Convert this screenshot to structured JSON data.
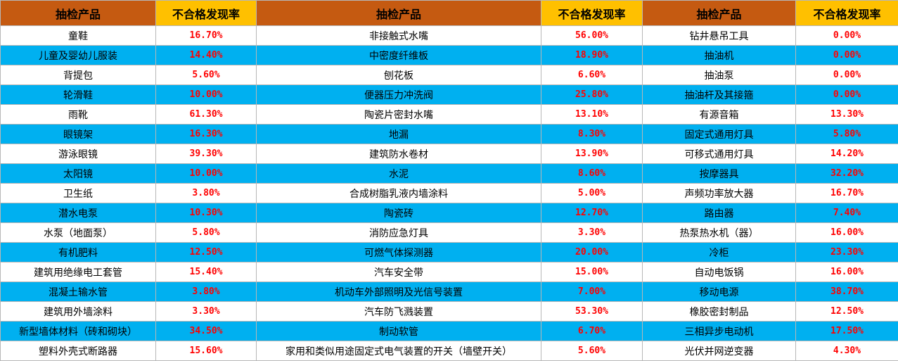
{
  "header": [
    "抽检产品",
    "不合格发现率",
    "抽检产品",
    "不合格发现率",
    "抽检产品",
    "不合格发现率"
  ],
  "rows": [
    [
      "童鞋",
      "16.70%",
      "非接触式水嘴",
      "56.00%",
      "钻井悬吊工具",
      "0.00%"
    ],
    [
      "儿童及婴幼儿服装",
      "14.40%",
      "中密度纤维板",
      "18.90%",
      "抽油机",
      "0.00%"
    ],
    [
      "背提包",
      "5.60%",
      "刨花板",
      "6.60%",
      "抽油泵",
      "0.00%"
    ],
    [
      "轮滑鞋",
      "10.00%",
      "便器压力冲洗阀",
      "25.80%",
      "抽油杆及其接箍",
      "0.00%"
    ],
    [
      "雨靴",
      "61.30%",
      "陶瓷片密封水嘴",
      "13.10%",
      "有源音箱",
      "13.30%"
    ],
    [
      "眼镜架",
      "16.30%",
      "地漏",
      "8.30%",
      "固定式通用灯具",
      "5.80%"
    ],
    [
      "游泳眼镜",
      "39.30%",
      "建筑防水卷材",
      "13.90%",
      "可移式通用灯具",
      "14.20%"
    ],
    [
      "太阳镜",
      "10.00%",
      "水泥",
      "8.60%",
      "按摩器具",
      "32.20%"
    ],
    [
      "卫生纸",
      "3.80%",
      "合成树脂乳液内墙涂料",
      "5.00%",
      "声频功率放大器",
      "16.70%"
    ],
    [
      "潜水电泵",
      "10.30%",
      "陶瓷砖",
      "12.70%",
      "路由器",
      "7.40%"
    ],
    [
      "水泵（地面泵）",
      "5.80%",
      "消防应急灯具",
      "3.30%",
      "热泵热水机（器）",
      "16.00%"
    ],
    [
      "有机肥料",
      "12.50%",
      "可燃气体探测器",
      "20.00%",
      "冷柜",
      "23.30%"
    ],
    [
      "建筑用绝缘电工套管",
      "15.40%",
      "汽车安全带",
      "15.00%",
      "自动电饭锅",
      "16.00%"
    ],
    [
      "混凝土输水管",
      "3.80%",
      "机动车外部照明及光信号装置",
      "7.00%",
      "移动电源",
      "38.70%"
    ],
    [
      "建筑用外墙涂料",
      "3.30%",
      "汽车防飞溅装置",
      "53.30%",
      "橡胶密封制品",
      "12.50%"
    ],
    [
      "新型墙体材料（砖和砌块）",
      "34.50%",
      "制动软管",
      "6.70%",
      "三相异步电动机",
      "17.50%"
    ],
    [
      "塑料外壳式断路器",
      "15.60%",
      "家用和类似用途固定式电气装置的开关（墙壁开关）",
      "5.60%",
      "光伏并网逆变器",
      "4.30%"
    ]
  ],
  "colors": {
    "header_product_bg": "#c55a11",
    "header_rate_bg": "#ffc000",
    "band_bg": "#00b0f0",
    "rate_text": "#ff0000"
  }
}
